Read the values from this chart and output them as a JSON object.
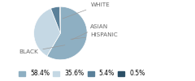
{
  "labels": [
    "BLACK",
    "WHITE",
    "HISPANIC",
    "ASIAN"
  ],
  "values": [
    58.4,
    35.6,
    5.4,
    0.5
  ],
  "colors": [
    "#8eafc2",
    "#c5d8e4",
    "#5a8099",
    "#2c4f66"
  ],
  "legend_labels": [
    "58.4%",
    "35.6%",
    "5.4%",
    "0.5%"
  ],
  "legend_colors": [
    "#8eafc2",
    "#c5d8e4",
    "#5a8099",
    "#2c4f66"
  ],
  "label_fontsize": 5.2,
  "legend_fontsize": 5.5,
  "label_color": "#666666",
  "line_color": "#999999"
}
